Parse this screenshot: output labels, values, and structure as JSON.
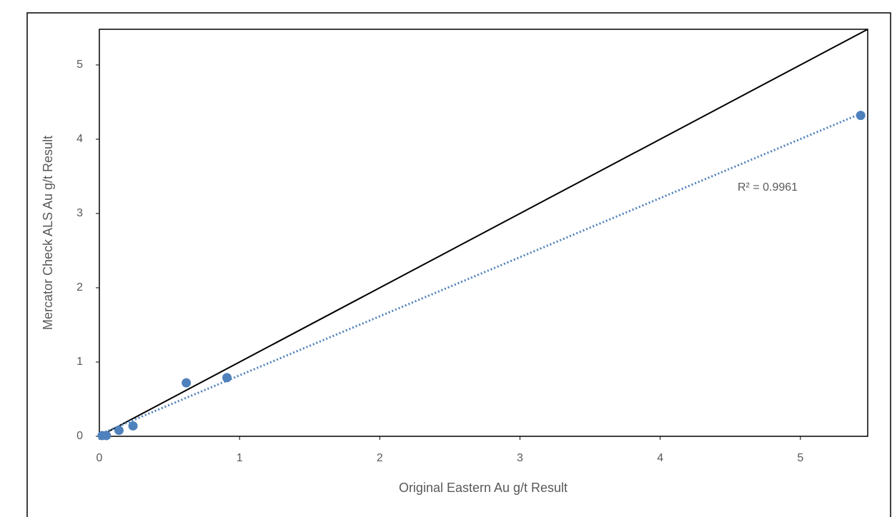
{
  "chart_data": {
    "type": "scatter",
    "x_label": "Original Eastern Au g/t Result",
    "y_label": "Mercator Check ALS Au g/t Result",
    "annotation": "R² = 0.9961",
    "x": [
      0.02,
      0.05,
      0.14,
      0.24,
      0.62,
      0.91,
      5.43
    ],
    "values": [
      0.01,
      0.01,
      0.08,
      0.14,
      0.72,
      0.79,
      4.32
    ],
    "color": "#4f81bd",
    "trendline": "linear",
    "trendline_color": "#4f81bd",
    "identity_line": true,
    "identity_color": "#000000",
    "xlim": [
      0,
      5.48
    ],
    "ylim": [
      0,
      5.48
    ],
    "xticks": [
      0,
      1,
      2,
      3,
      4,
      5
    ],
    "yticks": [
      0,
      1,
      2,
      3,
      4,
      5
    ]
  }
}
